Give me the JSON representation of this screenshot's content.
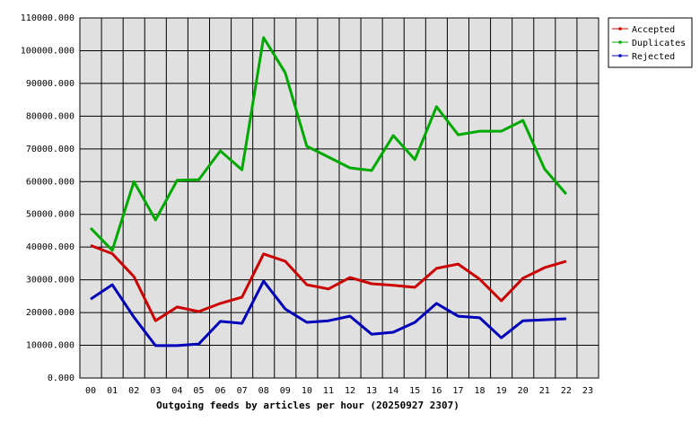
{
  "chart_data": {
    "type": "line",
    "title": "Outgoing feeds by articles per hour (20250927 2307)",
    "categories": [
      "00",
      "01",
      "02",
      "03",
      "04",
      "05",
      "06",
      "07",
      "08",
      "09",
      "10",
      "11",
      "12",
      "13",
      "14",
      "15",
      "16",
      "17",
      "18",
      "19",
      "20",
      "21",
      "22",
      "23"
    ],
    "series": [
      {
        "name": "Accepted",
        "color": "#cc0000",
        "values": [
          40500,
          38000,
          31000,
          17500,
          21700,
          20300,
          22800,
          24700,
          37900,
          35700,
          28500,
          27200,
          30700,
          28800,
          28300,
          27700,
          33500,
          34800,
          30200,
          23600,
          30500,
          33700,
          35700,
          null
        ]
      },
      {
        "name": "Duplicates",
        "color": "#00aa00",
        "values": [
          45800,
          39000,
          60000,
          48300,
          60400,
          60600,
          69400,
          63600,
          104000,
          93300,
          70800,
          67500,
          64200,
          63400,
          74100,
          66700,
          82900,
          74300,
          75400,
          75400,
          78700,
          63900,
          56200,
          null
        ]
      },
      {
        "name": "Rejected",
        "color": "#0000bb",
        "values": [
          24100,
          28500,
          18600,
          9900,
          9900,
          10400,
          17300,
          16700,
          29600,
          21100,
          17000,
          17500,
          18900,
          13400,
          14000,
          17000,
          22800,
          18900,
          18400,
          12300,
          17500,
          17800,
          18100,
          null
        ]
      }
    ],
    "ylim": [
      0,
      110000
    ],
    "yticks": [
      {
        "value": 0,
        "label": "0.000"
      },
      {
        "value": 10000,
        "label": "10000.000"
      },
      {
        "value": 20000,
        "label": "20000.000"
      },
      {
        "value": 30000,
        "label": "30000.000"
      },
      {
        "value": 40000,
        "label": "40000.000"
      },
      {
        "value": 50000,
        "label": "50000.000"
      },
      {
        "value": 60000,
        "label": "60000.000"
      },
      {
        "value": 70000,
        "label": "70000.000"
      },
      {
        "value": 80000,
        "label": "80000.000"
      },
      {
        "value": 90000,
        "label": "90000.000"
      },
      {
        "value": 100000,
        "label": "100000.000"
      },
      {
        "value": 110000,
        "label": "110000.000"
      }
    ],
    "grid": true,
    "legend": "right"
  }
}
